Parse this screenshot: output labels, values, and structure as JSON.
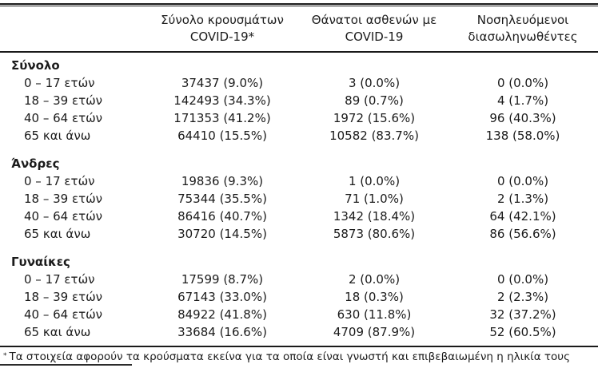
{
  "table": {
    "column_headers": [
      {
        "line1": "Σύνολο κρουσμάτων",
        "line2": "COVID-19*"
      },
      {
        "line1": "Θάνατοι ασθενών με",
        "line2": "COVID-19"
      },
      {
        "line1": "Νοσηλευόμενοι",
        "line2": "διασωληνωθέντες"
      }
    ],
    "sections": [
      {
        "label": "Σύνολο",
        "rows": [
          {
            "label": "0 – 17 ετών",
            "cases": "37437 (9.0%)",
            "deaths": "3 (0.0%)",
            "intubated": "0 (0.0%)"
          },
          {
            "label": "18 – 39 ετών",
            "cases": "142493 (34.3%)",
            "deaths": "89 (0.7%)",
            "intubated": "4 (1.7%)"
          },
          {
            "label": "40 – 64 ετών",
            "cases": "171353 (41.2%)",
            "deaths": "1972 (15.6%)",
            "intubated": "96 (40.3%)"
          },
          {
            "label": "65 και άνω",
            "cases": "64410 (15.5%)",
            "deaths": "10582 (83.7%)",
            "intubated": "138 (58.0%)"
          }
        ]
      },
      {
        "label": "Άνδρες",
        "rows": [
          {
            "label": "0 – 17 ετών",
            "cases": "19836 (9.3%)",
            "deaths": "1 (0.0%)",
            "intubated": "0 (0.0%)"
          },
          {
            "label": "18 – 39 ετών",
            "cases": "75344 (35.5%)",
            "deaths": "71 (1.0%)",
            "intubated": "2 (1.3%)"
          },
          {
            "label": "40 – 64 ετών",
            "cases": "86416 (40.7%)",
            "deaths": "1342 (18.4%)",
            "intubated": "64 (42.1%)"
          },
          {
            "label": "65 και άνω",
            "cases": "30720 (14.5%)",
            "deaths": "5873 (80.6%)",
            "intubated": "86 (56.6%)"
          }
        ]
      },
      {
        "label": "Γυναίκες",
        "rows": [
          {
            "label": "0 – 17 ετών",
            "cases": "17599 (8.7%)",
            "deaths": "2 (0.0%)",
            "intubated": "0 (0.0%)"
          },
          {
            "label": "18 – 39 ετών",
            "cases": "67143 (33.0%)",
            "deaths": "18 (0.3%)",
            "intubated": "2 (2.3%)"
          },
          {
            "label": "40 – 64 ετών",
            "cases": "84922 (41.8%)",
            "deaths": "630 (11.8%)",
            "intubated": "32 (37.2%)"
          },
          {
            "label": "65 και άνω",
            "cases": "33684 (16.6%)",
            "deaths": "4709 (87.9%)",
            "intubated": "52 (60.5%)"
          }
        ]
      }
    ],
    "footnote": {
      "marker": "*",
      "text": "Τα στοιχεία αφορούν τα κρούσματα εκείνα για τα οποία είναι γνωστή και επιβεβαιωμένη η ηλικία τους"
    }
  }
}
